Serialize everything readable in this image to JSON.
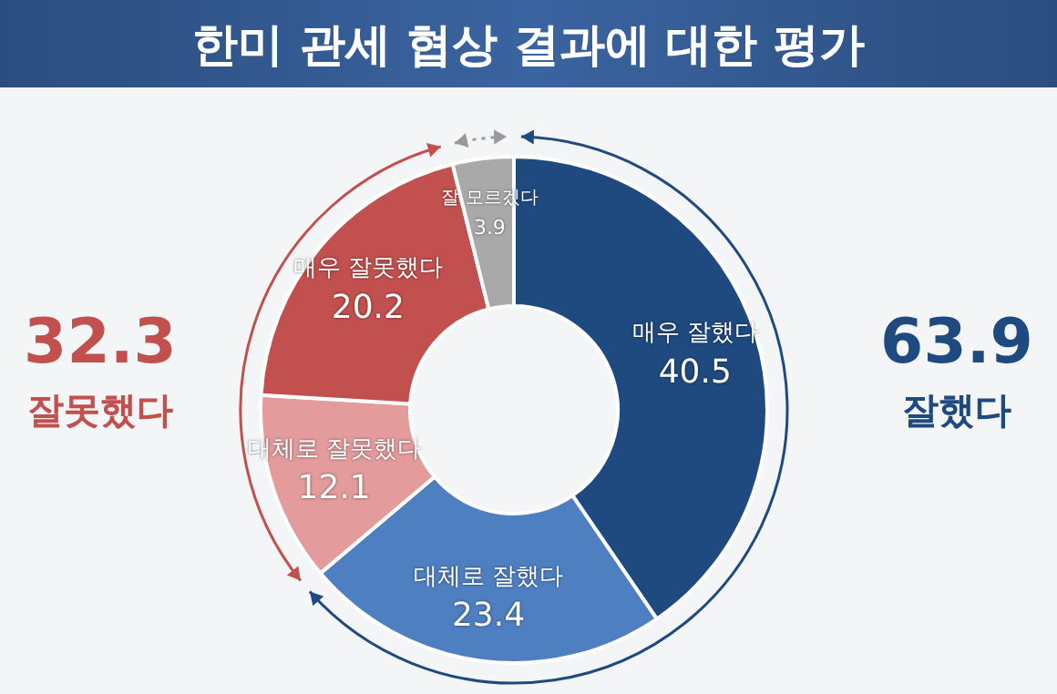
{
  "chart_data": {
    "type": "donut",
    "title": "한미 관세 협상 결과에 대한 평가",
    "categories": [
      "매우 잘했다",
      "대체로 잘했다",
      "대체로 잘못했다",
      "매우 잘못했다",
      "잘 모르겠다"
    ],
    "values": [
      40.5,
      23.4,
      12.1,
      20.2,
      3.9
    ],
    "colors": [
      "#1f4a80",
      "#4e7fc1",
      "#e39b9b",
      "#c2504e",
      "#a9a9a9"
    ],
    "data_labels": true,
    "legend": false,
    "annotations": [
      "32.3",
      "잘못했다",
      "63.9",
      "잘했다"
    ]
  }
}
